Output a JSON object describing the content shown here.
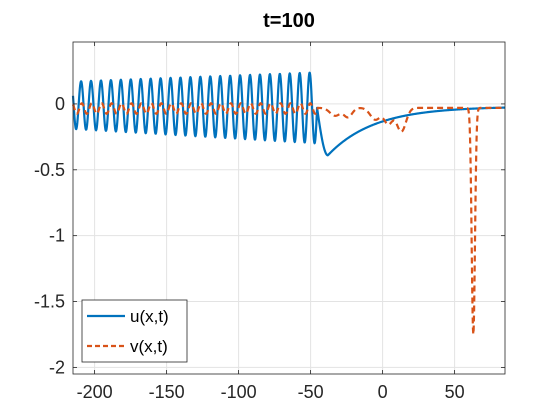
{
  "chart_data": {
    "type": "line",
    "title": "t=100",
    "xlabel": "",
    "ylabel": "",
    "xlim": [
      -215,
      85
    ],
    "ylim": [
      -2.05,
      0.47
    ],
    "xticks": [
      -200,
      -150,
      -100,
      -50,
      0,
      50
    ],
    "xtick_labels": [
      "-200",
      "-150",
      "-100",
      "-50",
      "0",
      "50"
    ],
    "yticks": [
      0,
      -0.5,
      -1,
      -1.5,
      -2
    ],
    "ytick_labels": [
      "0",
      "-0.5",
      "-1",
      "-1.5",
      "-2"
    ],
    "grid": true,
    "legend_position": "bottom-left",
    "series": [
      {
        "name": "u(x,t)",
        "color": "#0072BD",
        "style": "solid",
        "description_of_shape": "oscillatory wavetrain from x=-215 to about x=-45 with period about 6.9, crests about 0.16-0.26 and troughs about -0.20 to -0.32, amplitude growing toward the right; then a smooth dip to about -0.39 near x=-38 and a slow relaxation back toward 0",
        "x": [
          -215,
          -45,
          -38,
          -25,
          -10,
          0,
          10,
          25,
          40,
          55,
          70,
          85
        ],
        "y": [
          0,
          0,
          -0.39,
          -0.3,
          -0.2,
          -0.145,
          -0.105,
          -0.07,
          -0.045,
          -0.03,
          -0.02,
          -0.015
        ]
      },
      {
        "name": "v(x,t)",
        "color": "#D95319",
        "style": "dashed",
        "description_of_shape": "small oscillation near 0 for x<-45, small bumps between -45 and 20 reaching about -0.22 near x=13, a flat stretch near -0.03, then a sharp narrow trough reaching -1.76 near x=63",
        "x": [
          -215,
          -45,
          -35,
          -25,
          -15,
          -5,
          5,
          13,
          20,
          30,
          45,
          55,
          60,
          63,
          66,
          70,
          85
        ],
        "y": [
          -0.02,
          -0.03,
          -0.06,
          -0.08,
          -0.04,
          -0.12,
          -0.15,
          -0.22,
          -0.15,
          -0.05,
          -0.03,
          -0.04,
          -0.5,
          -1.76,
          -0.4,
          -0.04,
          -0.02
        ]
      }
    ]
  }
}
